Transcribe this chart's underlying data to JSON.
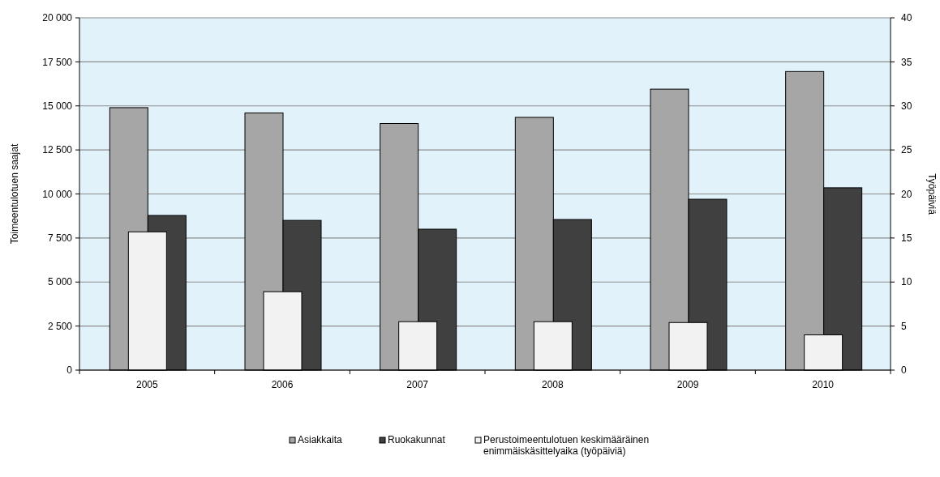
{
  "chart_data": {
    "type": "bar",
    "categories": [
      "2005",
      "2006",
      "2007",
      "2008",
      "2009",
      "2010"
    ],
    "ylabel": "Toimeentulotuen saajat",
    "y2label": "Työpäiviä",
    "series": [
      {
        "name": "Asiakkaita",
        "color": "#a6a6a6",
        "values": [
          14900,
          14600,
          14000,
          14350,
          15950,
          16950
        ]
      },
      {
        "name": "Ruokakunnat",
        "color": "#404040",
        "values": [
          8780,
          8500,
          8000,
          8550,
          9700,
          10350
        ]
      },
      {
        "name": "Perustoimeentulotuen keskimääräinen enimmäiskäsittelyaika (työpäiviä)",
        "color": "#f2f2f2",
        "values": [
          15.7,
          8.9,
          5.5,
          5.5,
          5.4,
          4
        ],
        "axis": "y2"
      }
    ],
    "ylim": [
      0,
      20000
    ],
    "yticks": [
      0,
      {
        "value": 2500,
        "label": "2 500"
      },
      {
        "value": 5000,
        "label": "5 000"
      },
      {
        "value": 7500,
        "label": "7 500"
      },
      {
        "value": 10000,
        "label": "10 000"
      },
      {
        "value": 12500,
        "label": "12 500"
      },
      {
        "value": 15000,
        "label": "15 000"
      },
      {
        "value": 17500,
        "label": "17 500"
      },
      {
        "value": 20000,
        "label": "20 000"
      }
    ],
    "y2lim": [
      0,
      40
    ],
    "y2ticks": [
      0,
      5,
      10,
      15,
      20,
      25,
      30,
      35,
      40
    ],
    "grid": "y",
    "legend": "bottom"
  }
}
